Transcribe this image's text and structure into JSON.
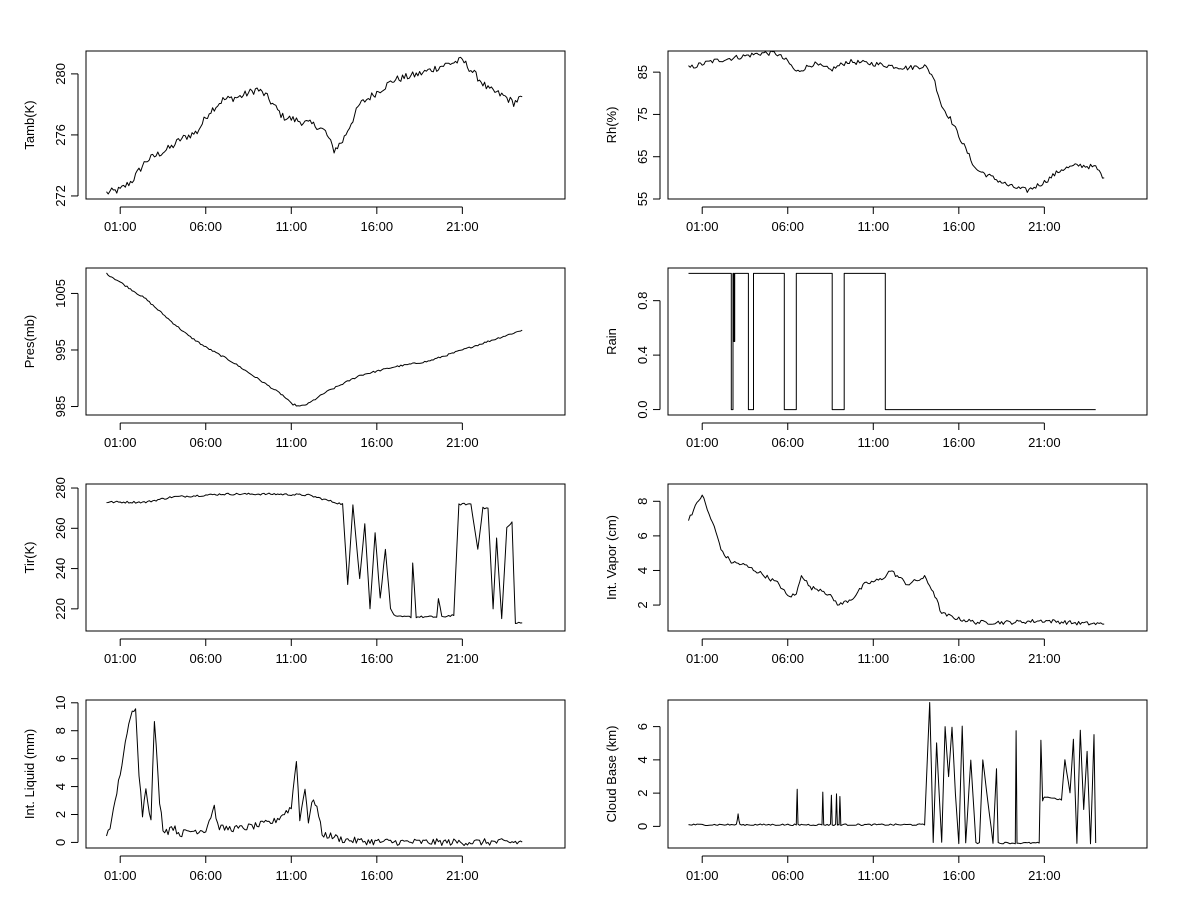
{
  "x_tick_labels": [
    "01:00",
    "06:00",
    "11:00",
    "16:00",
    "21:00"
  ],
  "colors": {
    "line": "#000000",
    "frame": "#000000",
    "background": "#ffffff"
  },
  "chart_data": [
    {
      "type": "line",
      "ylabel": "Tamb(K)",
      "ylim": [
        271.8,
        281.5
      ],
      "yticks": [
        272,
        276,
        280
      ],
      "ytick_labels": [
        "272",
        "276",
        "280"
      ],
      "x_hours": [
        -0.8,
        0,
        0.7,
        1.5,
        3.0,
        3.5,
        4.5,
        5.2,
        6.0,
        7.0,
        8.0,
        8.5,
        9.5,
        10.5,
        11.5,
        12.0,
        12.5,
        13.0,
        14.0,
        14.5,
        16.0,
        17.5,
        19.0,
        20.0,
        21.5,
        22.5,
        23.0,
        23.5
      ],
      "y": [
        272.2,
        272.4,
        273.0,
        274.3,
        275.2,
        275.7,
        276.2,
        277.5,
        278.3,
        278.5,
        279.0,
        278.6,
        277.2,
        276.9,
        276.6,
        276.2,
        275.0,
        275.6,
        278.0,
        278.4,
        279.6,
        280.0,
        280.6,
        280.9,
        279.0,
        278.5,
        278.1,
        278.5
      ],
      "noise": 0.25
    },
    {
      "type": "line",
      "ylabel": "Rh(%)",
      "ylim": [
        55,
        90
      ],
      "yticks": [
        55,
        65,
        75,
        85
      ],
      "ytick_labels": [
        "55",
        "65",
        "75",
        "85"
      ],
      "x_hours": [
        -0.8,
        0.5,
        2.0,
        3.5,
        4.3,
        5.0,
        5.5,
        6.5,
        7.5,
        8.5,
        10.0,
        12.0,
        13.0,
        13.5,
        14.0,
        14.5,
        15.0,
        15.5,
        16.0,
        17.0,
        18.0,
        19.0,
        20.0,
        21.0,
        22.0,
        23.0,
        23.5
      ],
      "y": [
        86,
        87.5,
        88.5,
        89.5,
        89.5,
        87.5,
        85,
        87,
        85.5,
        87.5,
        87,
        86,
        86.5,
        84,
        77,
        74,
        70,
        66,
        62,
        60,
        58,
        57,
        59,
        62,
        63,
        62.5,
        60
      ],
      "noise": 0.6
    },
    {
      "type": "line",
      "ylabel": "Pres(mb)",
      "ylim": [
        983.5,
        1009.5
      ],
      "yticks": [
        985,
        995,
        1005
      ],
      "ytick_labels": [
        "985",
        "995",
        "1005"
      ],
      "x_hours": [
        -0.8,
        0,
        1.5,
        3.0,
        4.0,
        5.0,
        6.5,
        8.0,
        9.5,
        10.0,
        10.5,
        11.0,
        12.0,
        13.0,
        14.0,
        16.0,
        18.0,
        20.0,
        22.0,
        23.5
      ],
      "y": [
        1008.5,
        1007,
        1004,
        1000,
        997.5,
        995.5,
        993,
        990,
        987,
        985.5,
        985.0,
        985.5,
        987.5,
        989,
        990.5,
        992,
        993,
        995,
        997,
        998.5
      ],
      "noise": 0.15
    },
    {
      "type": "step",
      "ylabel": "Rain",
      "ylim": [
        -0.04,
        1.04
      ],
      "yticks": [
        0,
        0.4,
        0.8
      ],
      "ytick_labels": [
        "0.0",
        "0.4",
        "0.8"
      ],
      "x_hours": [
        -0.8,
        1.7,
        1.7,
        1.8,
        1.8,
        1.85,
        1.85,
        1.9,
        1.9,
        2.7,
        2.7,
        3.0,
        3.0,
        4.8,
        4.8,
        5.5,
        5.5,
        7.6,
        7.6,
        8.3,
        8.3,
        10.7,
        10.7,
        23.0
      ],
      "y": [
        1,
        1,
        0,
        0,
        1,
        1,
        0.5,
        0.5,
        1,
        1,
        0,
        0,
        1,
        1,
        0,
        0,
        1,
        1,
        0,
        0,
        1,
        1,
        0,
        0
      ],
      "noise": 0
    },
    {
      "type": "line",
      "ylabel": "Tir(K)",
      "ylim": [
        209,
        282
      ],
      "yticks": [
        220,
        240,
        260,
        280
      ],
      "ytick_labels": [
        "220",
        "240",
        "260",
        "280"
      ],
      "x_hours": [
        -0.8,
        0.5,
        1.5,
        3.0,
        6.0,
        9.0,
        11.0,
        12.5,
        13.0,
        13.3,
        13.6,
        14.0,
        14.3,
        14.6,
        14.9,
        15.2,
        15.5,
        15.8,
        16.1,
        17.0,
        17.1,
        17.3,
        18.5,
        18.6,
        18.8,
        19.5,
        19.8,
        20.5,
        20.9,
        21.2,
        21.5,
        21.8,
        22.0,
        22.3,
        22.6,
        22.9,
        23.1,
        23.5
      ],
      "y": [
        273,
        273,
        273,
        275.5,
        277,
        277,
        276.5,
        273,
        272,
        232,
        272,
        235,
        262,
        220,
        258,
        225,
        250,
        220,
        216,
        216,
        243,
        216,
        216,
        225,
        216,
        217,
        272,
        272,
        250,
        270,
        270,
        220,
        255,
        215,
        260,
        263,
        213,
        213
      ],
      "noise": 0.5
    },
    {
      "type": "line",
      "ylabel": "Int. Vapor (cm)",
      "ylim": [
        0.5,
        9.0
      ],
      "yticks": [
        2,
        4,
        6,
        8
      ],
      "ytick_labels": [
        "2",
        "4",
        "6",
        "8"
      ],
      "x_hours": [
        -0.8,
        -0.5,
        0,
        0.3,
        0.7,
        1.2,
        1.7,
        2.5,
        3.5,
        4.5,
        5.0,
        5.5,
        5.8,
        6.3,
        7.0,
        7.5,
        8.0,
        8.8,
        9.5,
        10.5,
        11.0,
        12.0,
        13.0,
        13.5,
        14.0,
        15.0,
        16.0,
        18.0,
        20.0,
        22.0,
        23.5
      ],
      "y": [
        7.0,
        7.5,
        8.4,
        7.5,
        6.5,
        5.0,
        4.5,
        4.3,
        3.8,
        3.2,
        2.5,
        2.6,
        3.8,
        3.0,
        2.9,
        2.5,
        2.0,
        2.4,
        3.2,
        3.5,
        4.0,
        3.2,
        3.6,
        2.8,
        1.5,
        1.2,
        1.0,
        1.0,
        1.1,
        0.95,
        0.9
      ],
      "noise": 0.12
    },
    {
      "type": "line",
      "ylabel": "Int. Liquid (mm)",
      "ylim": [
        -0.4,
        10.2
      ],
      "yticks": [
        0,
        2,
        4,
        6,
        8,
        10
      ],
      "ytick_labels": [
        "0",
        "2",
        "4",
        "6",
        "8",
        "10"
      ],
      "x_hours": [
        -0.8,
        -0.5,
        0,
        0.3,
        0.6,
        0.9,
        1.1,
        1.3,
        1.5,
        1.8,
        2.0,
        2.3,
        2.5,
        2.8,
        3.0,
        3.5,
        4.0,
        5.0,
        5.5,
        5.7,
        6.0,
        7.0,
        8.0,
        9.0,
        9.5,
        10.0,
        10.3,
        10.5,
        10.8,
        11.0,
        11.3,
        11.5,
        11.8,
        12.5,
        13.0,
        14.0,
        15.0,
        17.0,
        20.0,
        23.5
      ],
      "y": [
        0.6,
        1.5,
        5.0,
        7.0,
        9.0,
        9.8,
        5.0,
        2.0,
        4.0,
        1.5,
        8.8,
        3.0,
        1.0,
        0.8,
        1.2,
        0.6,
        0.8,
        0.9,
        2.6,
        1.2,
        1.0,
        1.0,
        1.2,
        1.5,
        2.0,
        2.5,
        6.0,
        1.6,
        4.0,
        1.5,
        3.2,
        2.5,
        0.6,
        0.4,
        0.2,
        0.1,
        0.05,
        0.02,
        0.02,
        0.02
      ],
      "noise": 0.25
    },
    {
      "type": "line",
      "ylabel": "Cloud Base (km)",
      "ylim": [
        -1.3,
        7.6
      ],
      "yticks": [
        0,
        2,
        4,
        6
      ],
      "ytick_labels": [
        "0",
        "2",
        "4",
        "6"
      ],
      "x_hours": [
        -0.8,
        2.0,
        2.1,
        2.2,
        5.5,
        5.55,
        5.6,
        7.0,
        7.05,
        7.1,
        7.5,
        7.55,
        7.6,
        7.8,
        7.85,
        7.9,
        8.0,
        8.05,
        8.1,
        13.0,
        13.3,
        13.5,
        13.7,
        14.0,
        14.2,
        14.4,
        14.6,
        14.8,
        15.0,
        15.2,
        15.4,
        15.7,
        16.0,
        16.2,
        16.4,
        17.0,
        17.2,
        17.3,
        18.3,
        18.35,
        18.4,
        19.7,
        19.8,
        19.9,
        20.0,
        21.0,
        21.2,
        21.5,
        21.7,
        21.9,
        22.1,
        22.3,
        22.5,
        22.7,
        22.9,
        23.0
      ],
      "y": [
        0.1,
        0.1,
        0.7,
        0.1,
        0.1,
        2.2,
        0.1,
        0.1,
        2.1,
        0.1,
        0.1,
        1.9,
        0.1,
        0.1,
        2.0,
        0.1,
        0.1,
        1.8,
        0.1,
        0.1,
        7.5,
        -1.0,
        5.0,
        -1.0,
        6.0,
        3.0,
        6.0,
        2.0,
        -1.0,
        6.0,
        -1.0,
        4.0,
        -1.0,
        -1.0,
        4.0,
        -1.0,
        3.5,
        -1.0,
        -1.0,
        5.8,
        -1.0,
        -1.0,
        5.2,
        1.5,
        1.8,
        1.6,
        4.0,
        2.0,
        5.2,
        -1.0,
        5.8,
        1.0,
        4.5,
        -1.0,
        5.5,
        -1.0
      ],
      "noise": 0.05
    }
  ]
}
